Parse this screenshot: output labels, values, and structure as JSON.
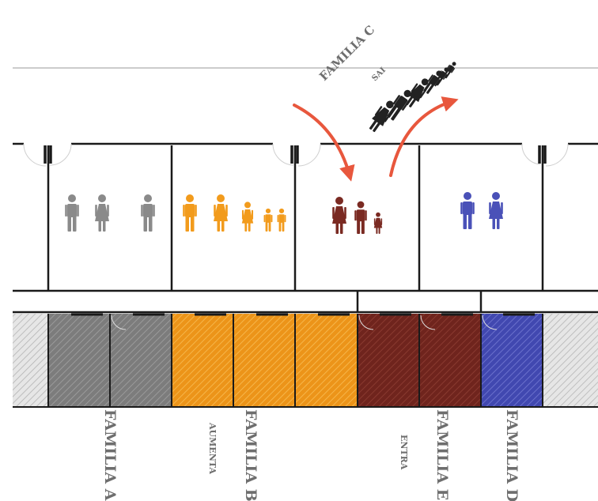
{
  "labels": {
    "familia_a": "FAMILIA A",
    "familia_b": "FAMILIA B",
    "familia_e": "FAMILIA E",
    "familia_d": "FAMILIA D",
    "familia_c": "FAMILIA C",
    "aumenta": "AUMENTA",
    "entra": "ENTRA",
    "sai": "SAI"
  },
  "colors": {
    "familia_a": "#8a8a8a",
    "familia_b": "#f29b1c",
    "familia_e": "#7a2a22",
    "familia_d": "#4a51b8",
    "familia_c": "#222222",
    "arrow": "#e8573d",
    "walls": "#1a1a1a",
    "hatch_neutral": "#d6d6d6"
  },
  "icons": {
    "familia_a": [
      "man",
      "woman",
      "man"
    ],
    "familia_b": [
      "man",
      "woman",
      "girl",
      "boy",
      "boy"
    ],
    "familia_e": [
      "woman",
      "man",
      "girl"
    ],
    "familia_d": [
      "man",
      "woman"
    ],
    "familia_c": [
      "woman",
      "man",
      "woman",
      "man",
      "boy",
      "boy"
    ]
  }
}
